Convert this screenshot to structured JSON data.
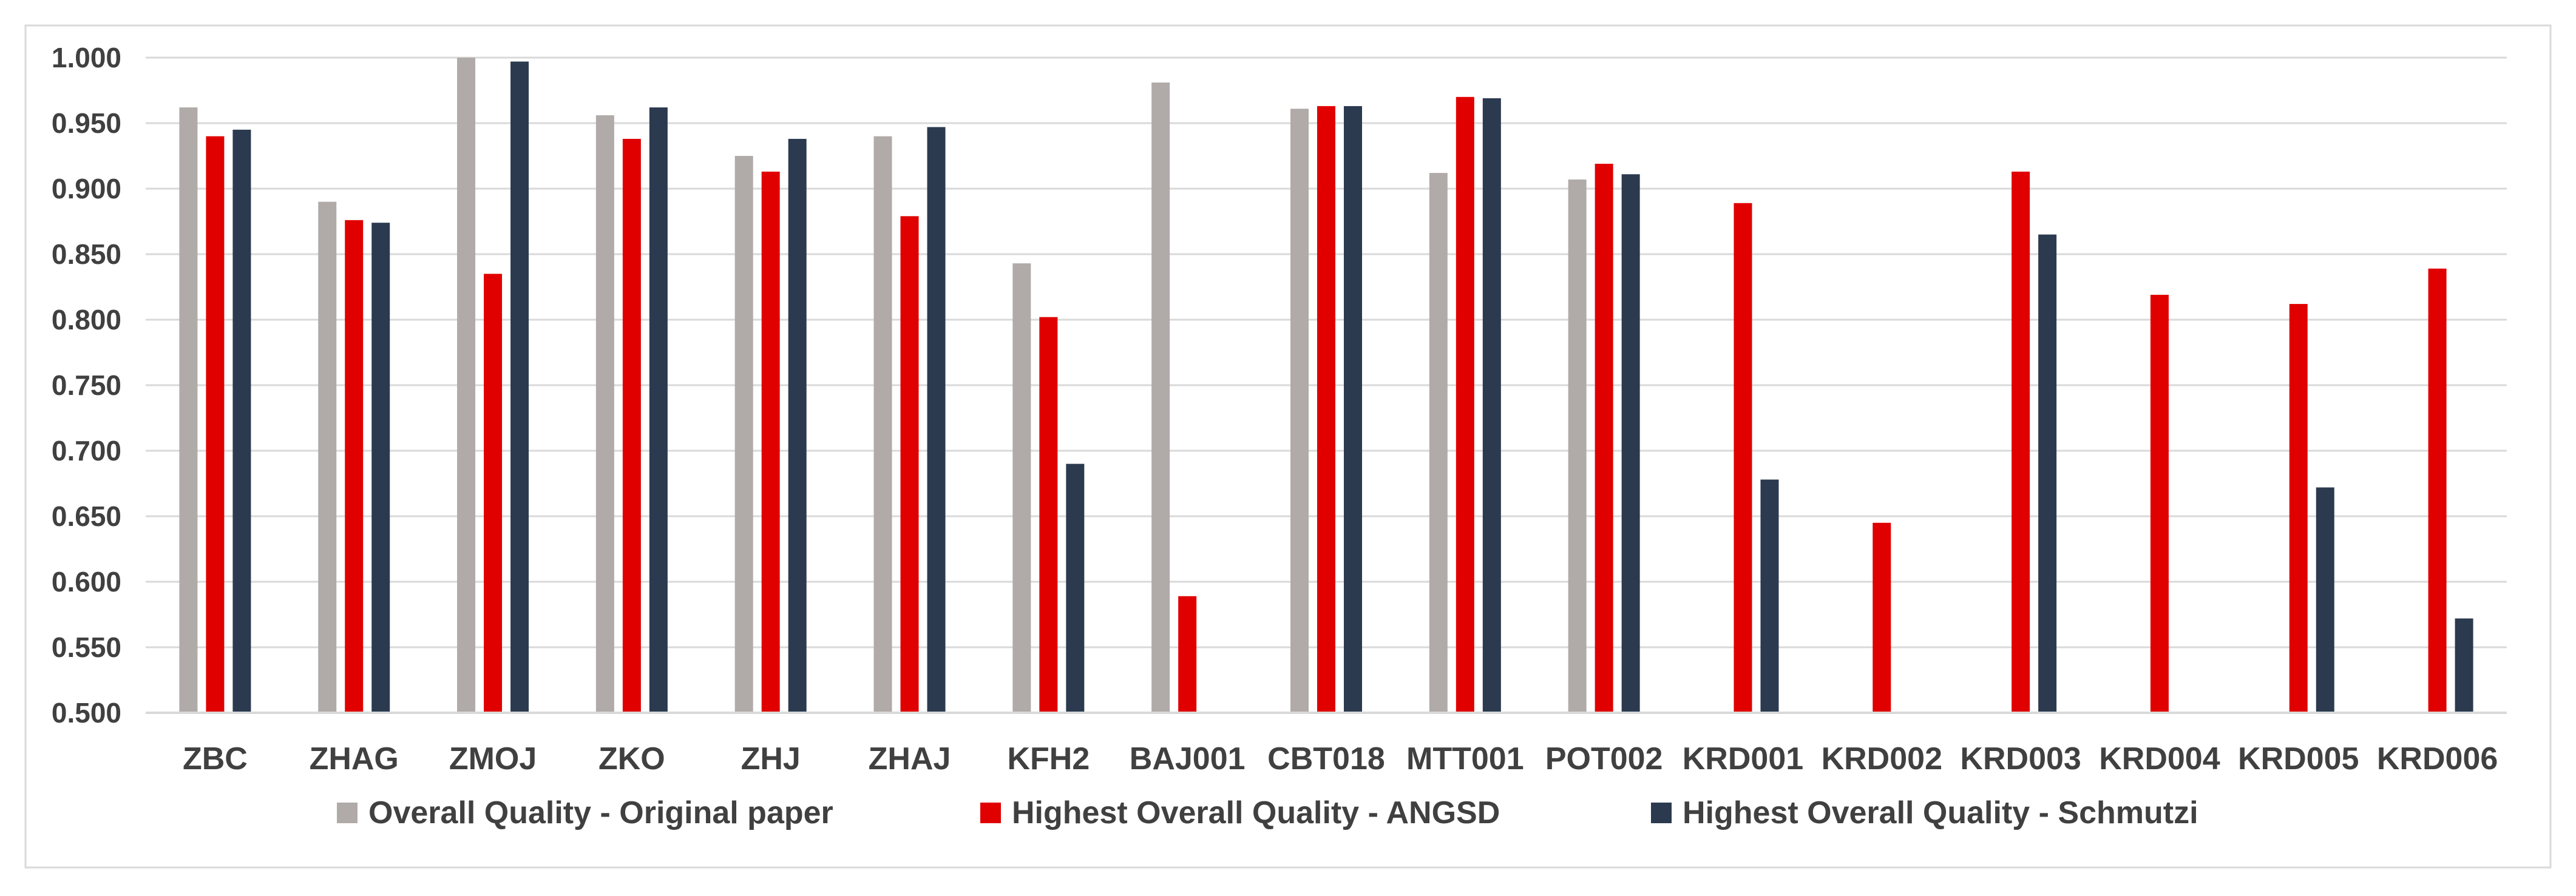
{
  "chart_data": {
    "type": "bar",
    "title": "",
    "xlabel": "",
    "ylabel": "",
    "categories": [
      "ZBC",
      "ZHAG",
      "ZMOJ",
      "ZKO",
      "ZHJ",
      "ZHAJ",
      "KFH2",
      "BAJ001",
      "CBT018",
      "MTT001",
      "POT002",
      "KRD001",
      "KRD002",
      "KRD003",
      "KRD004",
      "KRD005",
      "KRD006"
    ],
    "ylim": [
      0.5,
      1.0
    ],
    "yticks": [
      "0.500",
      "0.550",
      "0.600",
      "0.650",
      "0.700",
      "0.750",
      "0.800",
      "0.850",
      "0.900",
      "0.950",
      "1.000"
    ],
    "grid": true,
    "legend_position": "bottom",
    "series": [
      {
        "name": "Overall Quality - Original paper",
        "color": "#b0aba8",
        "values": [
          0.962,
          0.89,
          1.0,
          0.956,
          0.925,
          0.94,
          0.843,
          0.981,
          0.961,
          0.912,
          0.907,
          null,
          null,
          null,
          null,
          null,
          null
        ]
      },
      {
        "name": "Highest Overall Quality - ANGSD",
        "color": "#e00000",
        "values": [
          0.94,
          0.876,
          0.835,
          0.938,
          0.913,
          0.879,
          0.802,
          0.589,
          0.963,
          0.97,
          0.919,
          0.889,
          0.645,
          0.913,
          0.819,
          0.812,
          0.839
        ]
      },
      {
        "name": "Highest Overall Quality - Schmutzi",
        "color": "#2b3a4f",
        "values": [
          0.945,
          0.874,
          0.997,
          0.962,
          0.938,
          0.947,
          0.69,
          null,
          0.963,
          0.969,
          0.911,
          0.678,
          null,
          0.865,
          null,
          0.672,
          0.572
        ]
      }
    ]
  }
}
